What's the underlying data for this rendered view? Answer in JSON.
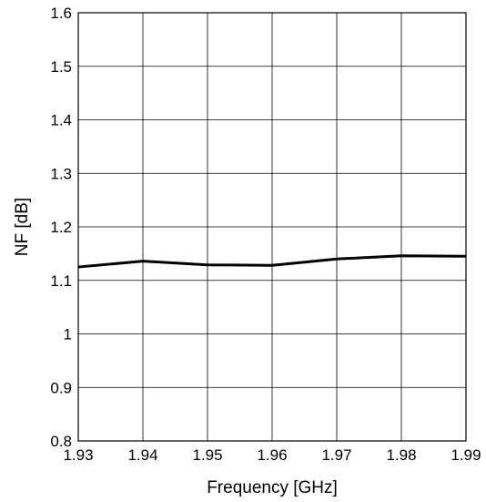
{
  "chart_data": {
    "type": "line",
    "title": "",
    "xlabel": "Frequency [GHz]",
    "ylabel": "NF [dB]",
    "xlim": [
      1.93,
      1.99
    ],
    "ylim": [
      0.8,
      1.6
    ],
    "grid": true,
    "x_ticks": [
      "1.93",
      "1.94",
      "1.95",
      "1.96",
      "1.97",
      "1.98",
      "1.99"
    ],
    "y_ticks": [
      "0.8",
      "0.9",
      "1",
      "1.1",
      "1.2",
      "1.3",
      "1.4",
      "1.5",
      "1.6"
    ],
    "series": [
      {
        "color": "#000000",
        "x": [
          1.93,
          1.94,
          1.95,
          1.96,
          1.97,
          1.98,
          1.99
        ],
        "y": [
          1.125,
          1.136,
          1.129,
          1.128,
          1.14,
          1.146,
          1.145
        ]
      }
    ]
  }
}
